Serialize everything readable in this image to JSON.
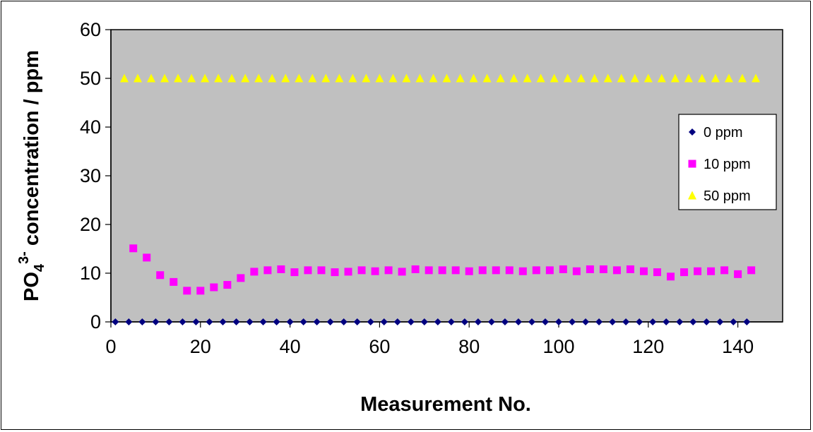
{
  "chart_data": {
    "type": "scatter",
    "title": "",
    "xlabel": "Measurement No.",
    "ylabel": {
      "base": "PO",
      "sub": "4",
      "sup": "3-",
      "rest": " concentration / ppm"
    },
    "xlim": [
      0,
      150
    ],
    "ylim": [
      0,
      60
    ],
    "xticks": [
      0,
      20,
      40,
      60,
      80,
      100,
      120,
      140
    ],
    "yticks": [
      0,
      10,
      20,
      30,
      40,
      50,
      60
    ],
    "grid": false,
    "plot_background": "#c0c0c0",
    "legend_position": "right",
    "series": [
      {
        "name": "0 ppm",
        "marker": "diamond",
        "color": "#000080",
        "x": [
          1,
          4,
          7,
          10,
          13,
          16,
          19,
          22,
          25,
          28,
          31,
          34,
          37,
          40,
          43,
          46,
          49,
          52,
          55,
          58,
          61,
          64,
          67,
          70,
          73,
          76,
          79,
          82,
          85,
          88,
          91,
          94,
          97,
          100,
          103,
          106,
          109,
          112,
          115,
          118,
          121,
          124,
          127,
          130,
          133,
          136,
          139,
          142
        ],
        "y": [
          0,
          0,
          0,
          0,
          0,
          0,
          0,
          0,
          0,
          0,
          0,
          0,
          0,
          0,
          0,
          0,
          0,
          0,
          0,
          0,
          0,
          0,
          0,
          0,
          0,
          0,
          0,
          0,
          0,
          0,
          0,
          0,
          0,
          0,
          0,
          0,
          0,
          0,
          0,
          0,
          0,
          0,
          0,
          0,
          0,
          0,
          0,
          0
        ]
      },
      {
        "name": "10 ppm",
        "marker": "square",
        "color": "#ff00ff",
        "x": [
          5,
          8,
          11,
          14,
          17,
          20,
          23,
          26,
          29,
          32,
          35,
          38,
          41,
          44,
          47,
          50,
          53,
          56,
          59,
          62,
          65,
          68,
          71,
          74,
          77,
          80,
          83,
          86,
          89,
          92,
          95,
          98,
          101,
          104,
          107,
          110,
          113,
          116,
          119,
          122,
          125,
          128,
          131,
          134,
          137,
          140,
          143
        ],
        "y": [
          15.1,
          13.2,
          9.6,
          8.2,
          6.4,
          6.4,
          7.1,
          7.6,
          9.0,
          10.3,
          10.6,
          10.8,
          10.2,
          10.6,
          10.6,
          10.2,
          10.3,
          10.6,
          10.4,
          10.6,
          10.3,
          10.8,
          10.6,
          10.6,
          10.6,
          10.4,
          10.6,
          10.6,
          10.6,
          10.4,
          10.6,
          10.6,
          10.8,
          10.4,
          10.8,
          10.8,
          10.6,
          10.8,
          10.4,
          10.2,
          9.3,
          10.2,
          10.4,
          10.4,
          10.6,
          9.8,
          10.6
        ]
      },
      {
        "name": "50 ppm",
        "marker": "triangle",
        "color": "#ffff00",
        "x": [
          3,
          6,
          9,
          12,
          15,
          18,
          21,
          24,
          27,
          30,
          33,
          36,
          39,
          42,
          45,
          48,
          51,
          54,
          57,
          60,
          63,
          66,
          69,
          72,
          75,
          78,
          81,
          84,
          87,
          90,
          93,
          96,
          99,
          102,
          105,
          108,
          111,
          114,
          117,
          120,
          123,
          126,
          129,
          132,
          135,
          138,
          141,
          144
        ],
        "y": [
          50,
          50,
          50,
          50,
          50,
          50,
          50,
          50,
          50,
          50,
          50,
          50,
          50,
          50,
          50,
          50,
          50,
          50,
          50,
          50,
          50,
          50,
          50,
          50,
          50,
          50,
          50,
          50,
          50,
          50,
          50,
          50,
          50,
          50,
          50,
          50,
          50,
          50,
          50,
          50,
          50,
          50,
          50,
          50,
          50,
          50,
          50,
          50
        ]
      }
    ]
  }
}
